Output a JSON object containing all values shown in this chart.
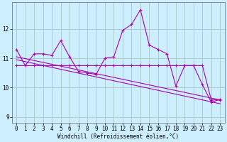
{
  "xlabel": "Windchill (Refroidissement éolien,°C)",
  "background_color": "#cceeff",
  "grid_color": "#aacccc",
  "line_color": "#aa00aa",
  "xlim": [
    -0.5,
    23.5
  ],
  "ylim": [
    8.8,
    12.9
  ],
  "yticks": [
    9,
    10,
    11,
    12
  ],
  "xticks": [
    0,
    1,
    2,
    3,
    4,
    5,
    6,
    7,
    8,
    9,
    10,
    11,
    12,
    13,
    14,
    15,
    16,
    17,
    18,
    19,
    20,
    21,
    22,
    23
  ],
  "series1_x": [
    0,
    1,
    2,
    3,
    4,
    5,
    6,
    7,
    8,
    9,
    10,
    11,
    12,
    13,
    14,
    15,
    16,
    17,
    18,
    19,
    20,
    21,
    22,
    23
  ],
  "series1_y": [
    11.3,
    10.75,
    11.15,
    11.15,
    11.1,
    11.6,
    11.05,
    10.55,
    10.5,
    10.45,
    11.0,
    11.05,
    11.95,
    12.15,
    12.65,
    11.45,
    11.3,
    11.15,
    10.05,
    10.75,
    10.75,
    10.1,
    9.5,
    9.6
  ],
  "series2_x": [
    0,
    1,
    2,
    3,
    4,
    5,
    6,
    7,
    8,
    9,
    10,
    11,
    12,
    13,
    14,
    15,
    16,
    17,
    18,
    19,
    20,
    21,
    22,
    23
  ],
  "series2_y": [
    10.75,
    10.75,
    10.75,
    10.75,
    10.75,
    10.75,
    10.75,
    10.75,
    10.75,
    10.75,
    10.75,
    10.75,
    10.75,
    10.75,
    10.75,
    10.75,
    10.75,
    10.75,
    10.75,
    10.75,
    10.75,
    10.75,
    9.58,
    9.58
  ],
  "trend1_x": [
    0,
    23
  ],
  "trend1_y": [
    11.05,
    9.58
  ],
  "trend2_x": [
    0,
    23
  ],
  "trend2_y": [
    10.95,
    9.45
  ]
}
